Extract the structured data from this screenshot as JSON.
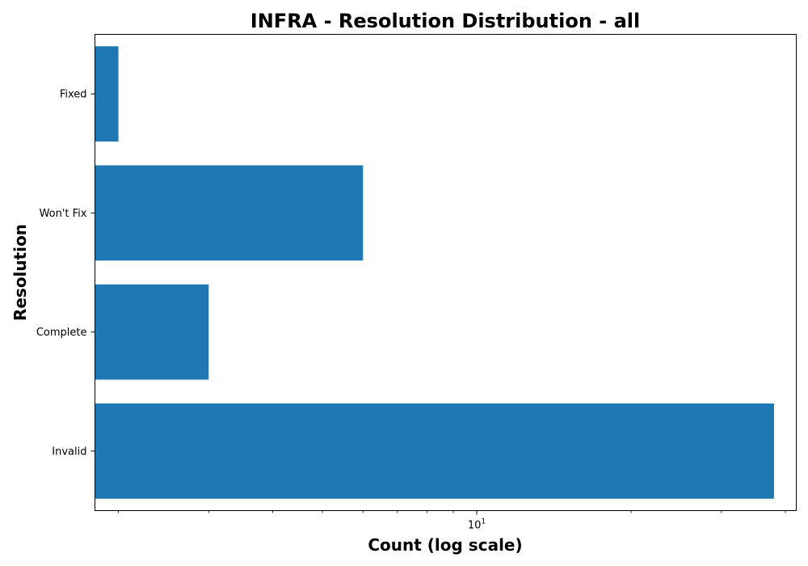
{
  "chart_data": {
    "type": "bar",
    "orientation": "horizontal",
    "title": "INFRA - Resolution Distribution - all",
    "xlabel": "Count (log scale)",
    "ylabel": "Resolution",
    "x_scale": "log",
    "xlim": [
      1.8,
      42
    ],
    "x_ticks": [
      {
        "base": "10",
        "exponent": "1",
        "value": 10
      }
    ],
    "x_minor_ticks": [
      2,
      3,
      4,
      5,
      6,
      7,
      8,
      9,
      20,
      30,
      40
    ],
    "categories": [
      "Invalid",
      "Complete",
      "Won't Fix",
      "Fixed"
    ],
    "values": [
      38,
      3,
      6,
      2
    ],
    "bar_color": "#1f77b4",
    "grid": false,
    "legend": "none"
  }
}
